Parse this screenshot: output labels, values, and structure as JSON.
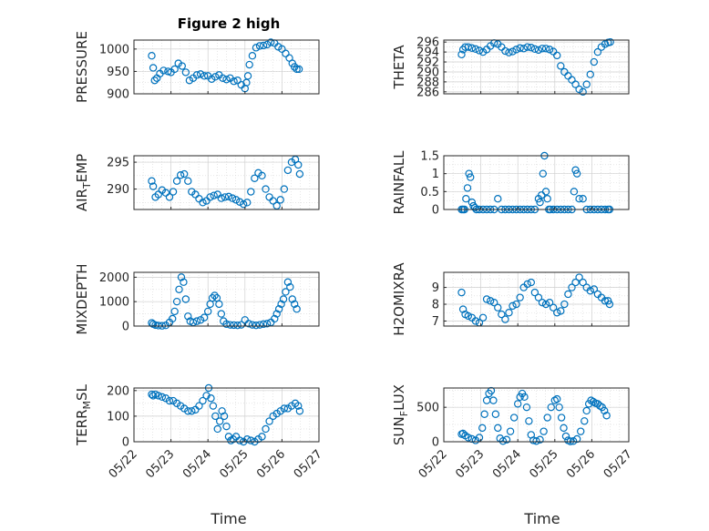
{
  "figure": {
    "title": "Figure 2 high",
    "xlabel": "Time",
    "x_ticks": [
      "05/22",
      "05/23",
      "05/24",
      "05/25",
      "05/26",
      "05/27"
    ],
    "marker_color": "#0072BD",
    "grid": "on (major + minor)"
  },
  "chart_data": [
    {
      "type": "scatter",
      "title": "Figure 2 high",
      "ylabel": "PRESSURE",
      "ylim": [
        900,
        1020
      ],
      "yticks": [
        900,
        950,
        1000
      ],
      "xlim": [
        0,
        5
      ],
      "series": [
        {
          "x": [
            0.48,
            0.52,
            0.56,
            0.62,
            0.7,
            0.8,
            0.92,
            1.0,
            1.1,
            1.2,
            1.3,
            1.4,
            1.5,
            1.6,
            1.7,
            1.8,
            1.9,
            2.0,
            2.1,
            2.2,
            2.3,
            2.4,
            2.5,
            2.6,
            2.7,
            2.8,
            2.9,
            3.0,
            3.04,
            3.08,
            3.12,
            3.2,
            3.3,
            3.4,
            3.5,
            3.6,
            3.7,
            3.8,
            3.9,
            4.0,
            4.1,
            4.2,
            4.28,
            4.34,
            4.4,
            4.46
          ],
          "y": [
            985,
            958,
            930,
            935,
            945,
            952,
            950,
            948,
            955,
            968,
            962,
            948,
            930,
            935,
            942,
            944,
            940,
            940,
            933,
            938,
            942,
            935,
            932,
            935,
            928,
            930,
            920,
            912,
            925,
            940,
            965,
            985,
            1003,
            1007,
            1008,
            1010,
            1015,
            1013,
            1005,
            1000,
            990,
            980,
            968,
            960,
            955,
            955
          ]
        }
      ]
    },
    {
      "type": "scatter",
      "title": "",
      "ylabel": "THETA",
      "ylim": [
        285.6,
        296.4
      ],
      "yticks": [
        286,
        288,
        290,
        292,
        294,
        296
      ],
      "xlim": [
        0,
        5
      ],
      "series": [
        {
          "x": [
            0.48,
            0.52,
            0.58,
            0.66,
            0.76,
            0.86,
            0.96,
            1.06,
            1.16,
            1.26,
            1.36,
            1.46,
            1.56,
            1.66,
            1.76,
            1.86,
            1.96,
            2.06,
            2.16,
            2.26,
            2.36,
            2.46,
            2.56,
            2.66,
            2.76,
            2.86,
            2.96,
            3.06,
            3.16,
            3.26,
            3.36,
            3.46,
            3.56,
            3.66,
            3.76,
            3.86,
            3.96,
            4.06,
            4.16,
            4.26,
            4.36,
            4.44,
            4.5
          ],
          "y": [
            293.5,
            294.5,
            295.0,
            295.0,
            294.8,
            294.6,
            294.3,
            294.0,
            294.5,
            295.2,
            295.8,
            295.6,
            295.0,
            294.2,
            293.9,
            294.1,
            294.5,
            294.8,
            294.7,
            295.0,
            294.9,
            294.6,
            294.4,
            294.7,
            294.7,
            294.5,
            294.1,
            293.3,
            291.2,
            290.0,
            289.2,
            288.4,
            287.5,
            286.5,
            286.0,
            287.5,
            289.5,
            292.0,
            294.0,
            295.0,
            295.6,
            295.9,
            296.0
          ]
        }
      ]
    },
    {
      "type": "scatter",
      "title": "",
      "ylabel": "AIR_TEMP",
      "ylim": [
        286.2,
        296.2
      ],
      "yticks": [
        290,
        295
      ],
      "xlim": [
        0,
        5
      ],
      "series": [
        {
          "x": [
            0.48,
            0.52,
            0.58,
            0.66,
            0.76,
            0.86,
            0.96,
            1.06,
            1.16,
            1.26,
            1.36,
            1.46,
            1.56,
            1.66,
            1.76,
            1.86,
            1.96,
            2.06,
            2.16,
            2.26,
            2.36,
            2.46,
            2.56,
            2.66,
            2.76,
            2.86,
            2.96,
            3.06,
            3.16,
            3.26,
            3.36,
            3.46,
            3.56,
            3.66,
            3.76,
            3.86,
            3.96,
            4.06,
            4.16,
            4.26,
            4.36,
            4.44,
            4.48
          ],
          "y": [
            291.5,
            290.5,
            288.5,
            289.0,
            289.8,
            289.3,
            288.5,
            289.5,
            291.5,
            292.6,
            292.8,
            291.5,
            289.5,
            289.0,
            288.2,
            287.5,
            287.8,
            288.5,
            288.8,
            289.0,
            288.3,
            288.5,
            288.6,
            288.3,
            288.0,
            287.6,
            287.2,
            287.5,
            289.5,
            292.0,
            293.0,
            292.5,
            290.0,
            288.5,
            287.8,
            286.9,
            288.0,
            290.0,
            293.5,
            295.0,
            295.5,
            294.5,
            292.8
          ]
        }
      ]
    },
    {
      "type": "scatter",
      "title": "",
      "ylabel": "RAINFALL",
      "ylim": [
        0,
        1.5
      ],
      "yticks": [
        0,
        0.5,
        1,
        1.5
      ],
      "xlim": [
        0,
        5
      ],
      "series": [
        {
          "x": [
            0.48,
            0.52,
            0.56,
            0.6,
            0.64,
            0.68,
            0.72,
            0.76,
            0.8,
            0.84,
            0.88,
            0.96,
            1.06,
            1.16,
            1.26,
            1.36,
            1.46,
            1.56,
            1.66,
            1.76,
            1.86,
            1.96,
            2.06,
            2.16,
            2.26,
            2.36,
            2.46,
            2.56,
            2.6,
            2.64,
            2.68,
            2.72,
            2.76,
            2.8,
            2.84,
            2.88,
            2.96,
            3.06,
            3.16,
            3.26,
            3.36,
            3.46,
            3.52,
            3.56,
            3.6,
            3.66,
            3.76,
            3.86,
            3.96,
            4.06,
            4.16,
            4.26,
            4.36,
            4.44,
            4.48
          ],
          "y": [
            0,
            0,
            0,
            0.3,
            0.6,
            1.0,
            0.9,
            0.2,
            0.1,
            0.05,
            0,
            0,
            0,
            0,
            0,
            0,
            0.3,
            0,
            0,
            0,
            0,
            0,
            0,
            0,
            0,
            0,
            0,
            0.3,
            0.2,
            0.4,
            1.0,
            1.5,
            0.5,
            0.3,
            0,
            0,
            0,
            0,
            0,
            0,
            0,
            0,
            0.5,
            1.1,
            1.0,
            0.3,
            0.3,
            0,
            0,
            0,
            0,
            0,
            0,
            0,
            0
          ]
        }
      ]
    },
    {
      "type": "scatter",
      "title": "",
      "ylabel": "MIXDEPTH",
      "ylim": [
        0,
        2200
      ],
      "yticks": [
        0,
        1000,
        2000
      ],
      "xlim": [
        0,
        5
      ],
      "series": [
        {
          "x": [
            0.48,
            0.52,
            0.58,
            0.66,
            0.76,
            0.86,
            0.96,
            1.04,
            1.1,
            1.16,
            1.22,
            1.28,
            1.34,
            1.4,
            1.46,
            1.52,
            1.6,
            1.7,
            1.8,
            1.9,
            2.0,
            2.06,
            2.12,
            2.18,
            2.24,
            2.3,
            2.36,
            2.42,
            2.5,
            2.6,
            2.7,
            2.8,
            2.9,
            3.0,
            3.1,
            3.2,
            3.3,
            3.4,
            3.5,
            3.6,
            3.7,
            3.8,
            3.86,
            3.92,
            3.98,
            4.04,
            4.1,
            4.16,
            4.22,
            4.28,
            4.34,
            4.4
          ],
          "y": [
            130,
            80,
            40,
            20,
            10,
            30,
            150,
            300,
            600,
            1000,
            1500,
            2000,
            1800,
            1100,
            400,
            200,
            150,
            200,
            250,
            350,
            600,
            900,
            1150,
            1250,
            1150,
            900,
            500,
            200,
            80,
            50,
            40,
            30,
            50,
            250,
            100,
            50,
            30,
            50,
            80,
            100,
            150,
            300,
            500,
            700,
            900,
            1100,
            1400,
            1800,
            1600,
            1100,
            900,
            700
          ]
        }
      ]
    },
    {
      "type": "scatter",
      "title": "",
      "ylabel": "H2OMIXRA",
      "ylim": [
        6.7,
        9.9
      ],
      "yticks": [
        7,
        8,
        9
      ],
      "xlim": [
        0,
        5
      ],
      "series": [
        {
          "x": [
            0.48,
            0.52,
            0.58,
            0.66,
            0.76,
            0.86,
            0.96,
            1.06,
            1.16,
            1.26,
            1.36,
            1.46,
            1.56,
            1.66,
            1.76,
            1.86,
            1.96,
            2.06,
            2.16,
            2.26,
            2.36,
            2.46,
            2.56,
            2.66,
            2.76,
            2.86,
            2.96,
            3.06,
            3.16,
            3.26,
            3.36,
            3.46,
            3.56,
            3.66,
            3.76,
            3.86,
            3.96,
            4.06,
            4.16,
            4.26,
            4.36,
            4.44,
            4.48
          ],
          "y": [
            8.7,
            7.7,
            7.4,
            7.3,
            7.2,
            7.0,
            6.9,
            7.2,
            8.3,
            8.2,
            8.1,
            7.8,
            7.4,
            7.1,
            7.5,
            7.9,
            8.0,
            8.4,
            9.0,
            9.2,
            9.3,
            8.7,
            8.4,
            8.1,
            8.0,
            8.1,
            7.8,
            7.5,
            7.6,
            8.0,
            8.6,
            9.0,
            9.3,
            9.6,
            9.3,
            9.0,
            8.8,
            8.9,
            8.6,
            8.4,
            8.2,
            8.2,
            8.0
          ]
        }
      ]
    },
    {
      "type": "scatter",
      "title": "",
      "ylabel": "TERR_MSL",
      "ylim": [
        0,
        210
      ],
      "yticks": [
        0,
        100,
        200
      ],
      "xlim": [
        0,
        5
      ],
      "series": [
        {
          "x": [
            0.48,
            0.52,
            0.58,
            0.66,
            0.76,
            0.86,
            0.96,
            1.06,
            1.16,
            1.26,
            1.36,
            1.46,
            1.56,
            1.66,
            1.76,
            1.86,
            1.96,
            2.02,
            2.08,
            2.14,
            2.2,
            2.26,
            2.32,
            2.38,
            2.44,
            2.5,
            2.56,
            2.62,
            2.68,
            2.76,
            2.86,
            2.96,
            3.06,
            3.16,
            3.26,
            3.36,
            3.46,
            3.56,
            3.66,
            3.76,
            3.86,
            3.96,
            4.06,
            4.16,
            4.26,
            4.36,
            4.44,
            4.48
          ],
          "y": [
            185,
            180,
            185,
            180,
            175,
            170,
            160,
            160,
            150,
            140,
            130,
            120,
            120,
            125,
            140,
            160,
            180,
            210,
            170,
            140,
            100,
            50,
            80,
            120,
            100,
            60,
            20,
            5,
            10,
            20,
            5,
            0,
            10,
            5,
            0,
            10,
            20,
            50,
            80,
            100,
            110,
            120,
            130,
            130,
            140,
            150,
            140,
            120
          ]
        }
      ]
    },
    {
      "type": "scatter",
      "title": "",
      "ylabel": "SUN_FLUX",
      "ylim": [
        0,
        780
      ],
      "yticks": [
        0,
        500
      ],
      "xlim": [
        0,
        5
      ],
      "series": [
        {
          "x": [
            0.48,
            0.52,
            0.58,
            0.66,
            0.76,
            0.86,
            0.96,
            1.04,
            1.1,
            1.16,
            1.22,
            1.28,
            1.34,
            1.4,
            1.46,
            1.52,
            1.6,
            1.7,
            1.8,
            1.9,
            2.0,
            2.06,
            2.12,
            2.18,
            2.24,
            2.3,
            2.36,
            2.42,
            2.5,
            2.6,
            2.7,
            2.8,
            2.9,
            3.0,
            3.06,
            3.12,
            3.18,
            3.24,
            3.3,
            3.36,
            3.42,
            3.5,
            3.6,
            3.7,
            3.8,
            3.86,
            3.92,
            3.98,
            4.04,
            4.1,
            4.16,
            4.22,
            4.28,
            4.34,
            4.4
          ],
          "y": [
            110,
            120,
            90,
            60,
            40,
            20,
            60,
            200,
            400,
            600,
            700,
            740,
            600,
            400,
            200,
            50,
            10,
            30,
            150,
            350,
            550,
            650,
            700,
            650,
            500,
            300,
            100,
            20,
            10,
            30,
            150,
            350,
            500,
            600,
            620,
            500,
            350,
            200,
            80,
            20,
            5,
            10,
            40,
            150,
            300,
            450,
            550,
            600,
            580,
            560,
            550,
            520,
            500,
            450,
            380
          ]
        }
      ]
    }
  ]
}
